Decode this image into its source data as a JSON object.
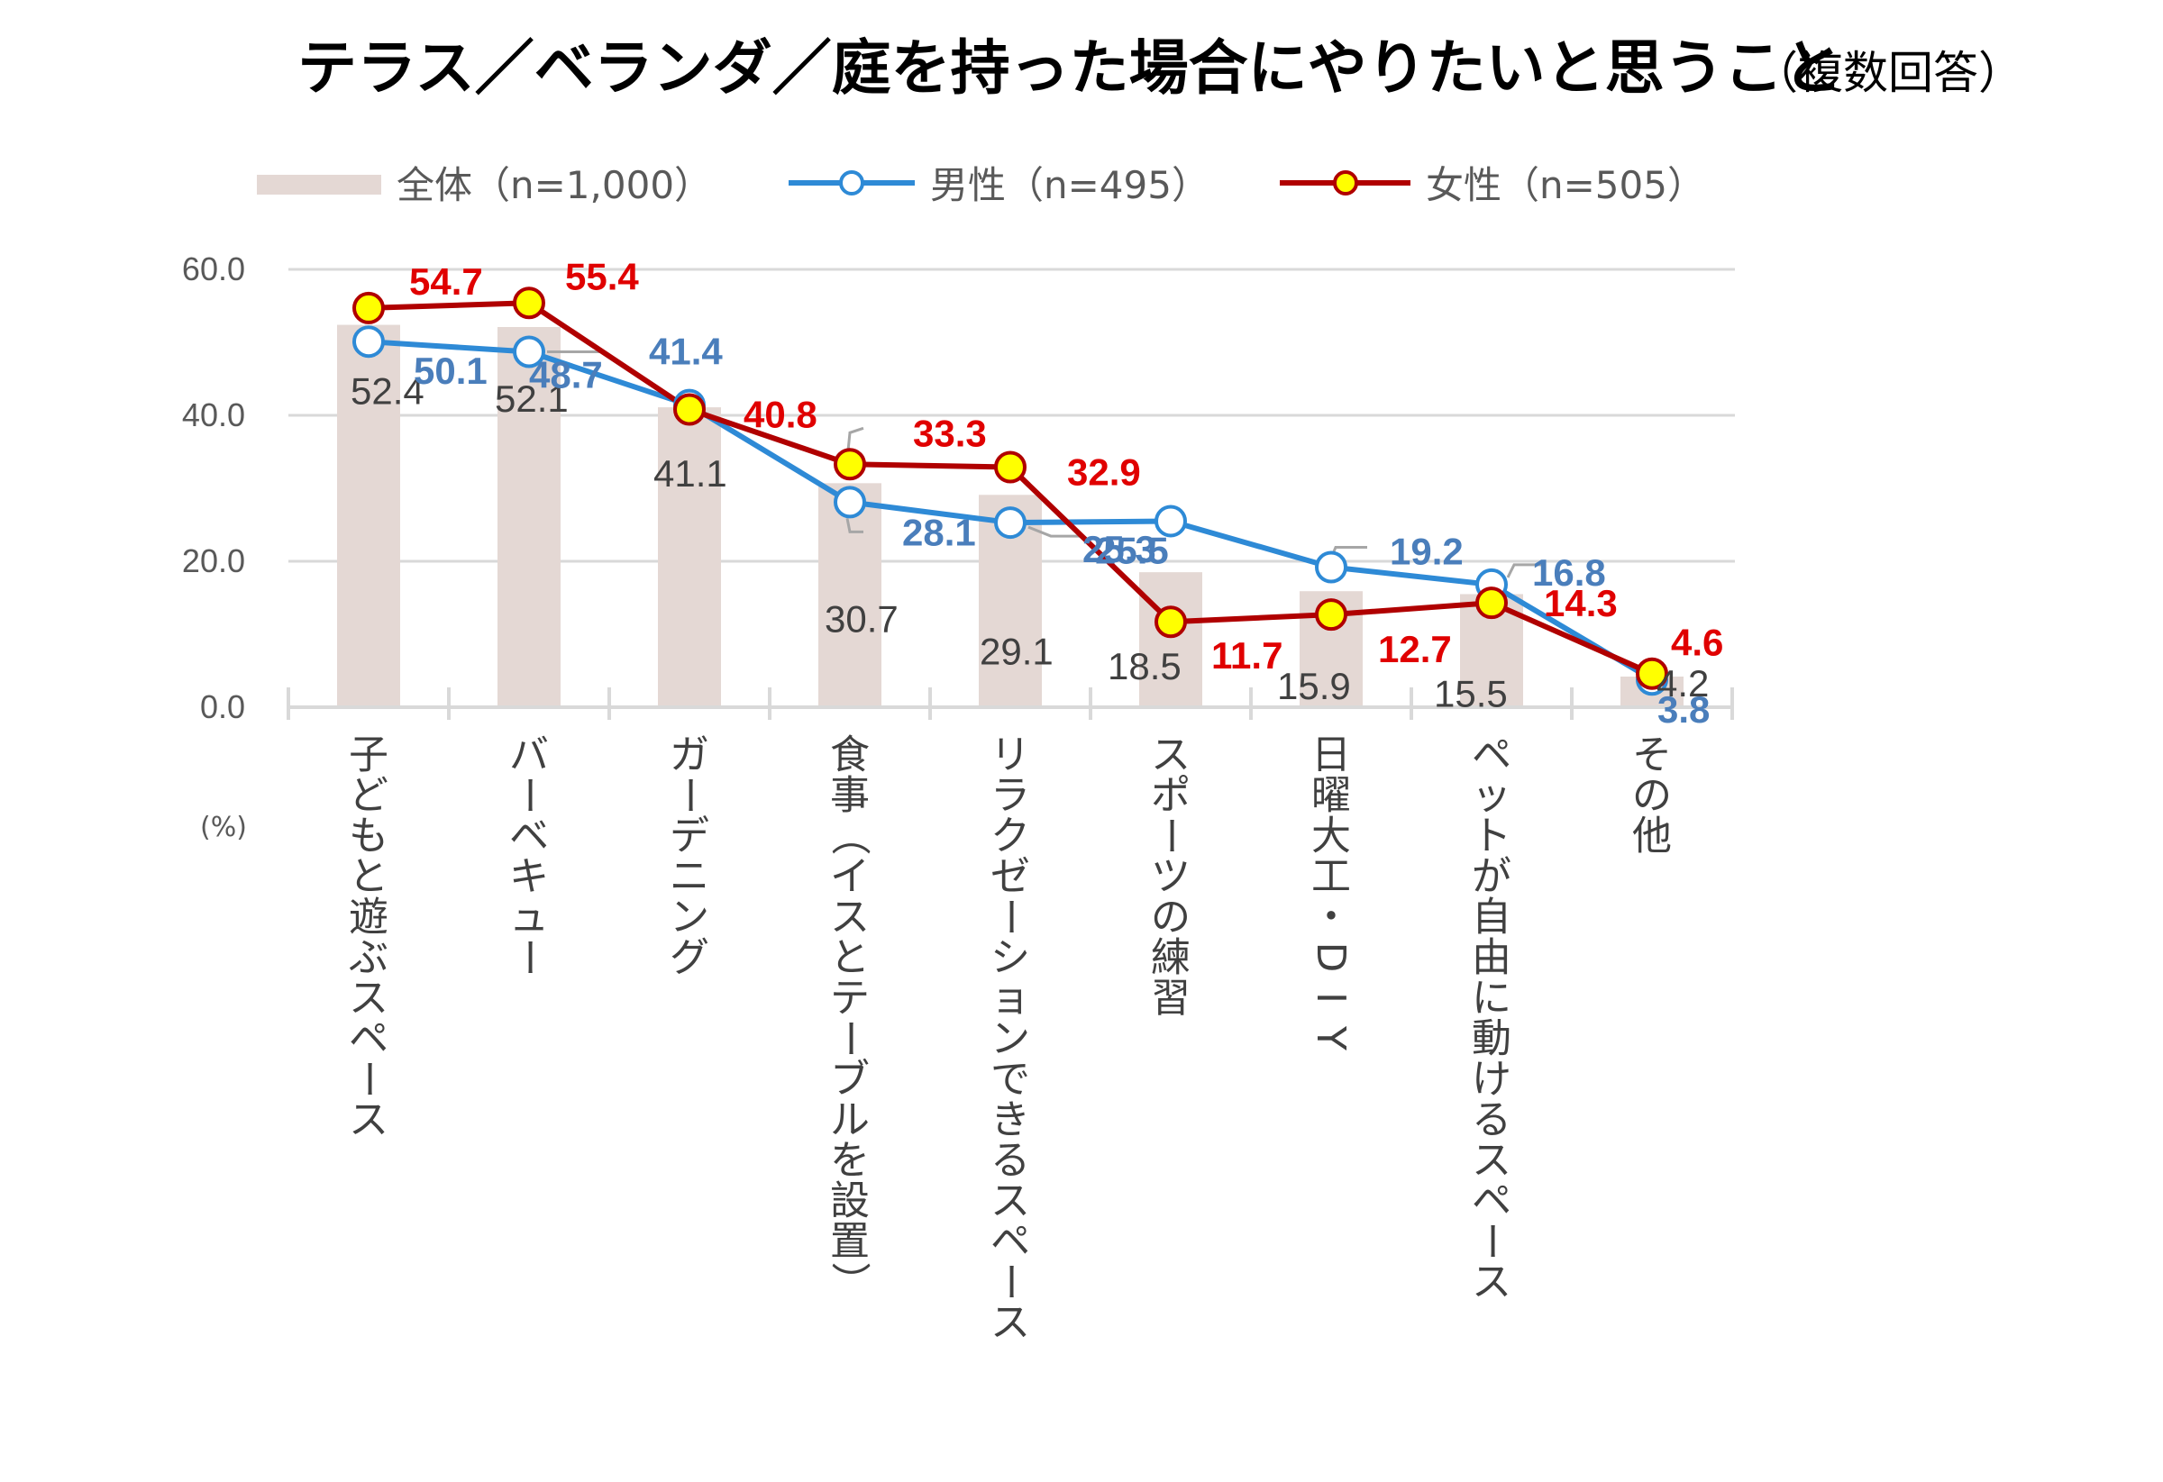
{
  "title": "テラス／ベランダ／庭を持った場合にやりたいと思うこと",
  "subtitle": "（複数回答）",
  "unit_label": "(%)",
  "colors": {
    "bar": "#e4d8d4",
    "male": "#2e8ad6",
    "female": "#b00000",
    "female_marker": "#ffff00",
    "male_label": "#4a7ebb",
    "female_label": "#e00000",
    "grid": "#d9d9d9"
  },
  "chart_data": {
    "type": "bar",
    "title": "テラス／ベランダ／庭を持った場合にやりたいと思うこと",
    "subtitle": "（複数回答）",
    "ylabel": "(%)",
    "ylim": [
      0,
      60
    ],
    "yticks": [
      "0.0",
      "20.0",
      "40.0",
      "60.0"
    ],
    "grid": true,
    "legend_position": "top",
    "categories": [
      "子どもと遊ぶスペース",
      "バーベキュー",
      "ガーデニング",
      "食事（イスとテーブルを設置）",
      "リラクゼーションできるスペース",
      "スポーツの練習",
      "日曜大工・DIY",
      "ペットが自由に動けるスペース",
      "その他"
    ],
    "series": [
      {
        "name": "全体（n=1,000）",
        "type": "bar",
        "values": [
          52.4,
          52.1,
          41.1,
          30.7,
          29.1,
          18.5,
          15.9,
          15.5,
          4.2
        ],
        "labels": [
          "52.4",
          "52.1",
          "41.1",
          "30.7",
          "29.1",
          "18.5",
          "15.9",
          "15.5",
          "4.2"
        ]
      },
      {
        "name": "男性（n=495）",
        "type": "line",
        "values": [
          50.1,
          48.7,
          41.4,
          28.1,
          25.3,
          25.5,
          19.2,
          16.8,
          3.8
        ],
        "labels": [
          "50.1",
          "48.7",
          "41.4",
          "28.1",
          "25.3",
          "25.5",
          "19.2",
          "16.8",
          "3.8"
        ]
      },
      {
        "name": "女性（n=505）",
        "type": "line",
        "values": [
          54.7,
          55.4,
          40.8,
          33.3,
          32.9,
          11.7,
          12.7,
          14.3,
          4.6
        ],
        "labels": [
          "54.7",
          "55.4",
          "40.8",
          "33.3",
          "32.9",
          "11.7",
          "12.7",
          "14.3",
          "4.6"
        ]
      }
    ]
  }
}
